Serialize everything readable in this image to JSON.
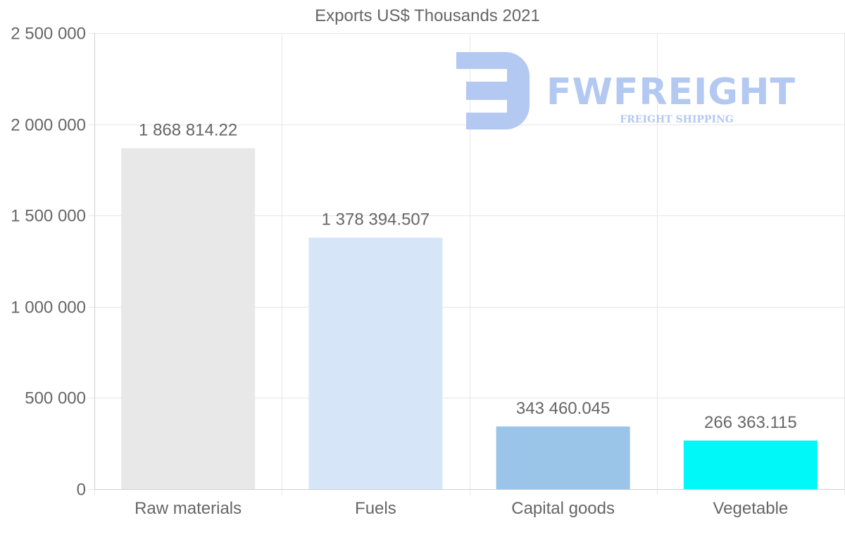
{
  "watermark": {
    "brand": "FWFREIGHT",
    "tagline": "FREIGHT SHIPPING",
    "color": "#b3c9f2"
  },
  "chart_data": {
    "type": "bar",
    "title": "Exports US$ Thousands 2021",
    "categories": [
      "Raw materials",
      "Fuels",
      "Capital goods",
      "Vegetable"
    ],
    "values": [
      1868814.22,
      1378394.507,
      343460.045,
      266363.115
    ],
    "value_labels": [
      "1 868 814.22",
      "1 378 394.507",
      "343 460.045",
      "266 363.115"
    ],
    "colors": [
      "#e8e8e8",
      "#d6e6f8",
      "#9ac4e8",
      "#00f8f8"
    ],
    "ylim": [
      0,
      2500000
    ],
    "yticks": [
      0,
      500000,
      1000000,
      1500000,
      2000000,
      2500000
    ],
    "ytick_labels": [
      "0",
      "500 000",
      "1 000 000",
      "1 500 000",
      "2 000 000",
      "2 500 000"
    ],
    "grid": true,
    "xlabel": "",
    "ylabel": ""
  }
}
